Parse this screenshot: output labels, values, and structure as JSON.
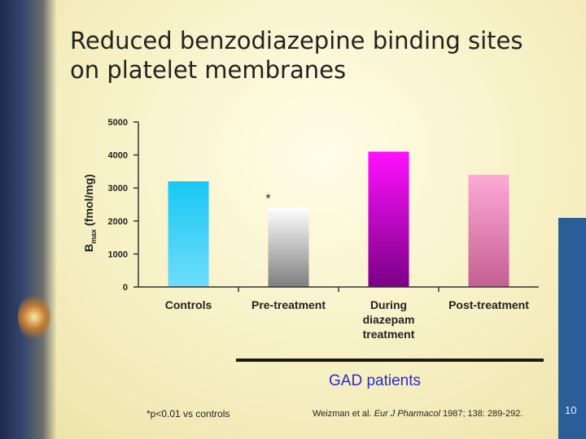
{
  "slide": {
    "title": "Reduced benzodiazepine binding sites on platelet membranes",
    "group_label": "GAD patients",
    "footnote": "*p<0.01 vs controls",
    "citation": {
      "authors": "Weizman et al. ",
      "journal": "Eur J Pharmacol",
      "details": " 1987; 138: 289-292."
    },
    "page_number": "10"
  },
  "chart_data": {
    "type": "bar",
    "categories": [
      "Controls",
      "Pre-treatment",
      "During diazepam treatment",
      "Post-treatment"
    ],
    "category_lines": [
      [
        "Controls"
      ],
      [
        "Pre-treatment"
      ],
      [
        "During",
        "diazepam",
        "treatment"
      ],
      [
        "Post-treatment"
      ]
    ],
    "values": [
      3200,
      2400,
      4100,
      3400
    ],
    "ylabel": {
      "main": "B",
      "sub": "max",
      "rest": " (fmol/mg)"
    },
    "ylim": [
      0,
      5000
    ],
    "yticks": [
      0,
      1000,
      2000,
      3000,
      4000,
      5000
    ],
    "annotations": [
      {
        "category_index": 1,
        "text": "*"
      }
    ],
    "bar_colors": [
      [
        "#18c8f4",
        "#6fdcfa"
      ],
      [
        "#ffffff",
        "#7e7e7e"
      ],
      [
        "#ff10ff",
        "#7a0085"
      ],
      [
        "#ffaad6",
        "#c45f91"
      ]
    ]
  }
}
